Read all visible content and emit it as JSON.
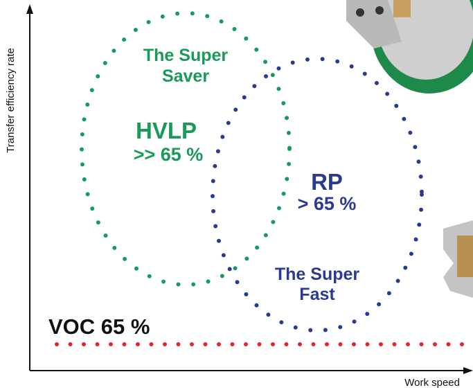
{
  "axes": {
    "y_label": "Transfer efficiency rate",
    "x_label": "Work speed"
  },
  "green_zone": {
    "name_lines": [
      "The Super",
      "Saver"
    ],
    "label": "HVLP",
    "rate": ">> 65 %"
  },
  "blue_zone": {
    "label": "RP",
    "rate": "> 65 %",
    "name_lines": [
      "The Super",
      "Fast"
    ]
  },
  "voc_line": {
    "label": "VOC 65 %"
  }
}
